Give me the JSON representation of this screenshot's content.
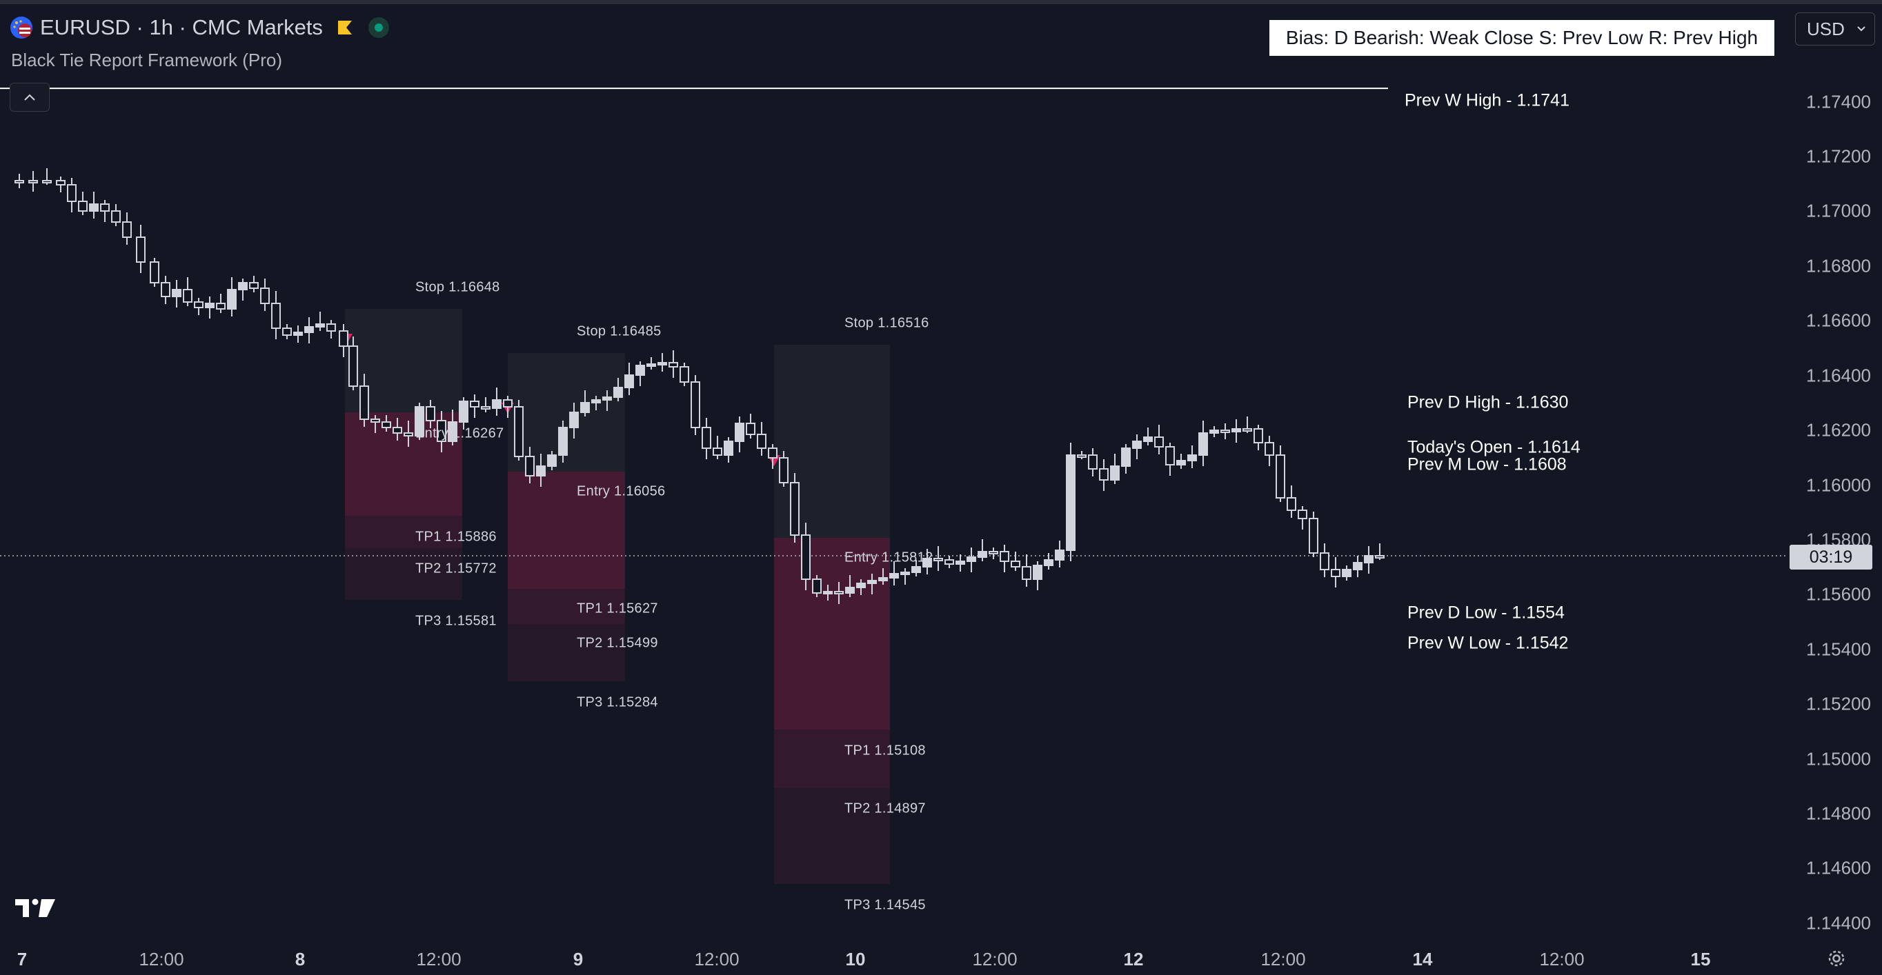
{
  "header": {
    "symbol": "EURUSD · 1h · CMC Markets",
    "indicator": "Black Tie Report Framework (Pro)",
    "bias": "Bias: D  Bearish: Weak Close  S: Prev Low  R: Prev High",
    "currency": "USD"
  },
  "price_axis": {
    "labels": [
      "1.17400",
      "1.17200",
      "1.17000",
      "1.16800",
      "1.16600",
      "1.16400",
      "1.16200",
      "1.16000",
      "1.15800",
      "1.15600",
      "1.15400",
      "1.15200",
      "1.15000",
      "1.14800",
      "1.14600",
      "1.14400"
    ],
    "countdown": "03:19"
  },
  "time_axis": {
    "labels": [
      {
        "text": "7",
        "bold": true
      },
      {
        "text": "12:00",
        "bold": false
      },
      {
        "text": "8",
        "bold": true
      },
      {
        "text": "12:00",
        "bold": false
      },
      {
        "text": "9",
        "bold": true
      },
      {
        "text": "12:00",
        "bold": false
      },
      {
        "text": "10",
        "bold": true
      },
      {
        "text": "12:00",
        "bold": false
      },
      {
        "text": "12",
        "bold": true
      },
      {
        "text": "12:00",
        "bold": false
      },
      {
        "text": "14",
        "bold": true
      },
      {
        "text": "12:00",
        "bold": false
      },
      {
        "text": "15",
        "bold": true
      }
    ]
  },
  "levels": [
    {
      "label": "Prev W High - 1.1741",
      "price": 1.1741
    },
    {
      "label": "Prev D High - 1.1630",
      "price": 1.163
    },
    {
      "label": "Today's Open - 1.1614",
      "price": 1.1614
    },
    {
      "label": "Prev M Low  - 1.1608",
      "price": 1.1608
    },
    {
      "label": "Prev D Low  - 1.1554",
      "price": 1.1554
    },
    {
      "label": "Prev W Low  - 1.1542",
      "price": 1.1542
    }
  ],
  "trades": [
    {
      "stop": "Stop  1.16648",
      "entry": "Entry  1.16267",
      "tp1": "TP1   1.15886",
      "tp2": "TP2   1.15772",
      "tp3": "TP3   1.15581"
    },
    {
      "stop": "Stop  1.16485",
      "entry": "Entry 1.16056",
      "tp1": "TP1   1.15627",
      "tp2": "TP2   1.15499",
      "tp3": "TP3   1.15284"
    },
    {
      "stop": "Stop  1.16516",
      "entry": "Entry 1.15812",
      "tp1": "TP1   1.15108",
      "tp2": "TP2   1.14897",
      "tp3": "TP3   1.14545"
    }
  ],
  "colors": {
    "background": "#121723",
    "candle_body": "#d1d4dc",
    "level_line": "#ffffff",
    "stop_zone": "#1e222d",
    "target_zone": "#4a1a34",
    "signal_marker": "#e91e63",
    "accent_flag": "#f7c325",
    "status_live": "#089981"
  },
  "icons": {
    "symbol_logo": "eur-usd-flag-icon",
    "collapse": "chevron-up-icon",
    "settings": "gear-icon",
    "brand": "tradingview-logo-icon"
  }
}
